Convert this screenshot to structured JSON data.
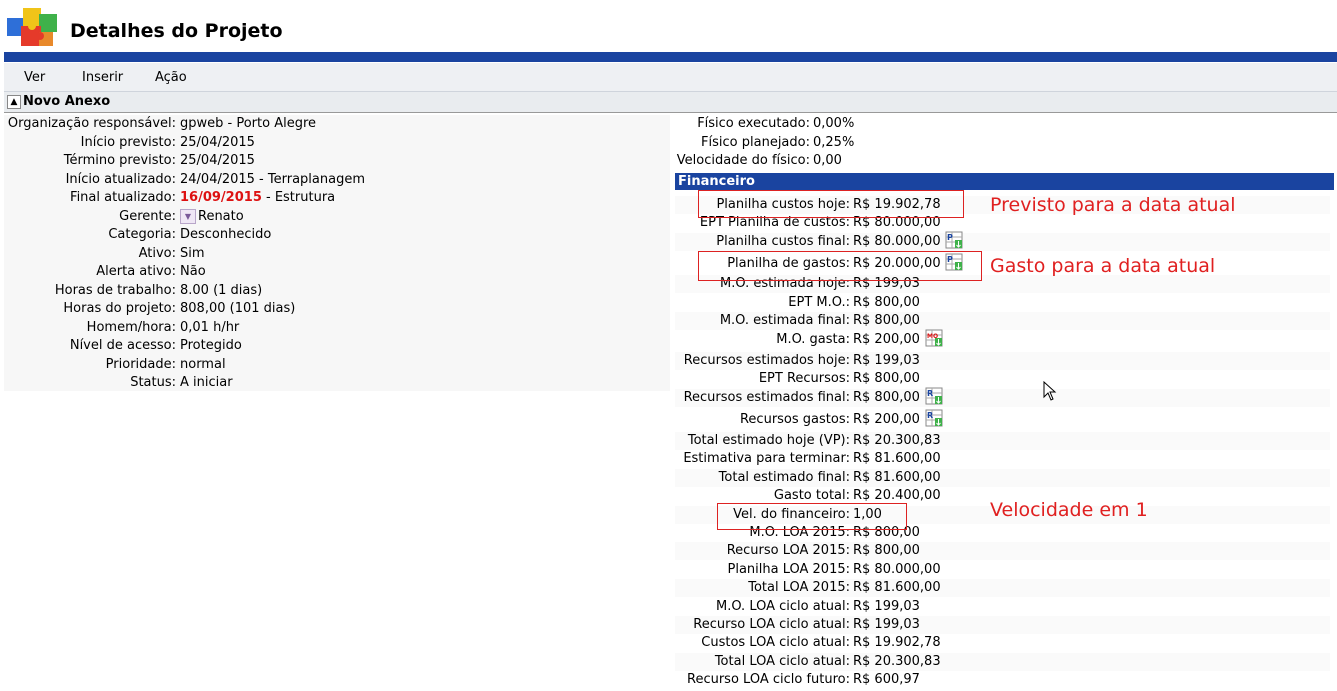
{
  "page": {
    "title": "Detalhes do Projeto"
  },
  "menu": {
    "items": [
      "Ver",
      "Inserir",
      "Ação"
    ]
  },
  "section": {
    "title": "Novo Anexo"
  },
  "details": [
    {
      "label": "Organização responsável:",
      "value": "gpweb - Porto Alegre"
    },
    {
      "label": "Início previsto:",
      "value": "25/04/2015"
    },
    {
      "label": "Término previsto:",
      "value": "25/04/2015"
    },
    {
      "label": "Início atualizado:",
      "value": "24/04/2015 - Terraplanagem"
    },
    {
      "label": "Final atualizado:",
      "value_red": "16/09/2015",
      "value": " - Estrutura"
    },
    {
      "label": "Gerente:",
      "value": "Renato"
    },
    {
      "label": "Categoria:",
      "value": "Desconhecido"
    },
    {
      "label": "Ativo:",
      "value": "Sim"
    },
    {
      "label": "Alerta ativo:",
      "value": "Não"
    },
    {
      "label": "Horas de trabalho:",
      "value": "8.00 (1 dias)"
    },
    {
      "label": "Horas do projeto:",
      "value": "808,00 (101 dias)"
    },
    {
      "label": "Homem/hora:",
      "value": "0,01 h/hr"
    },
    {
      "label": "Nível de acesso:",
      "value": "Protegido"
    },
    {
      "label": "Prioridade:",
      "value": "normal"
    },
    {
      "label": "Status:",
      "value": "A iniciar"
    }
  ],
  "physical": [
    {
      "label": "Físico executado:",
      "value": "0,00%"
    },
    {
      "label": "Físico planejado:",
      "value": "0,25%"
    },
    {
      "label": "Velocidade do físico:",
      "value": "0,00"
    }
  ],
  "financeiro": {
    "title": "Financeiro",
    "rows": [
      {
        "label": "Planilha custos hoje:",
        "value": "R$ 19.902,78"
      },
      {
        "label": "EPT Planilha de custos:",
        "value": "R$ 80.000,00"
      },
      {
        "label": "Planilha custos final:",
        "value": "R$ 80.000,00",
        "icon": "P"
      },
      {
        "label": "Planilha de gastos:",
        "value": "R$ 20.000,00",
        "icon": "P"
      },
      {
        "label": "M.O. estimada hoje:",
        "value": "R$ 199,03"
      },
      {
        "label": "EPT M.O.:",
        "value": "R$ 800,00"
      },
      {
        "label": "M.O. estimada final:",
        "value": "R$ 800,00"
      },
      {
        "label": "M.O. gasta:",
        "value": "R$ 200,00",
        "icon": "MO"
      },
      {
        "label": "Recursos estimados hoje:",
        "value": "R$ 199,03"
      },
      {
        "label": "EPT Recursos:",
        "value": "R$ 800,00"
      },
      {
        "label": "Recursos estimados final:",
        "value": "R$ 800,00",
        "icon": "R"
      },
      {
        "label": "Recursos gastos:",
        "value": "R$ 200,00",
        "icon": "R"
      },
      {
        "label": "Total estimado hoje (VP):",
        "value": "R$ 20.300,83"
      },
      {
        "label": "Estimativa para terminar:",
        "value": "R$ 81.600,00"
      },
      {
        "label": "Total estimado final:",
        "value": "R$ 81.600,00"
      },
      {
        "label": "Gasto total:",
        "value": "R$ 20.400,00"
      },
      {
        "label": "Vel. do financeiro:",
        "value": "1,00"
      },
      {
        "label": "M.O. LOA 2015:",
        "value": "R$ 800,00"
      },
      {
        "label": "Recurso LOA 2015:",
        "value": "R$ 800,00"
      },
      {
        "label": "Planilha LOA 2015:",
        "value": "R$ 80.000,00"
      },
      {
        "label": "Total LOA 2015:",
        "value": "R$ 81.600,00"
      },
      {
        "label": "M.O. LOA ciclo atual:",
        "value": "R$ 199,03"
      },
      {
        "label": "Recurso LOA ciclo atual:",
        "value": "R$ 199,03"
      },
      {
        "label": "Custos LOA ciclo atual:",
        "value": "R$ 19.902,78"
      },
      {
        "label": "Total LOA ciclo atual:",
        "value": "R$ 20.300,83"
      },
      {
        "label": "Recurso LOA ciclo futuro:",
        "value": "R$ 600,97"
      }
    ]
  },
  "annotations": [
    {
      "text": "Previsto para a data atual"
    },
    {
      "text": "Gasto para a data atual"
    },
    {
      "text": "Velocidade em 1"
    }
  ],
  "colors": {
    "accent_blue": "#1a44a0",
    "date_red": "#d11111",
    "annotation_red": "#e02020"
  }
}
